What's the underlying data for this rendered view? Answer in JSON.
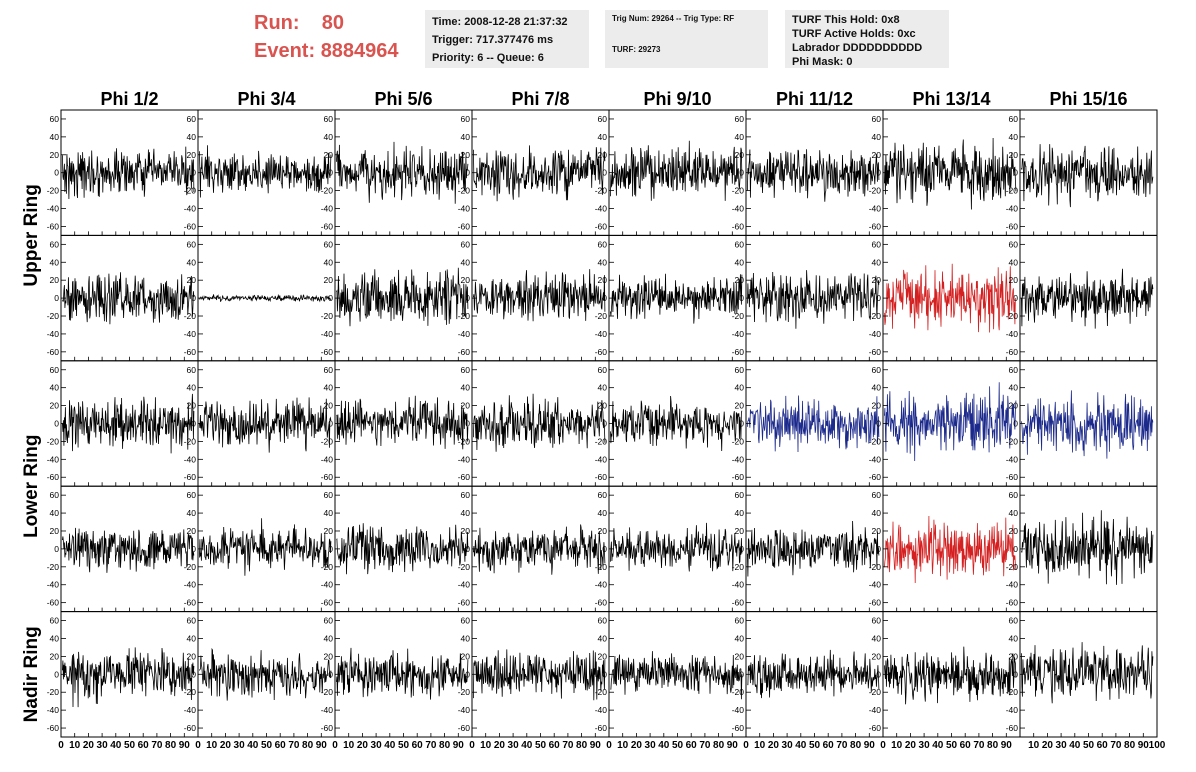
{
  "header": {
    "run_label": "Run:",
    "run_value": "80",
    "event_label": "Event:",
    "event_value": "8884964"
  },
  "info_boxes": {
    "time": {
      "time": "Time: 2008-12-28 21:37:32",
      "trigger": "Trigger: 717.377476 ms",
      "priority": "Priority: 6 -- Queue: 6"
    },
    "trig": {
      "trig_line": "Trig Num: 29264 -- Trig Type: RF",
      "turf_line": "TURF: 29273"
    },
    "turf": {
      "hold": "TURF This Hold: 0x8",
      "active": "TURF Active Holds: 0xc",
      "labrador": "Labrador DDDDDDDDDD",
      "phi_mask": "Phi Mask: 0"
    }
  },
  "colors": {
    "default": "#000000",
    "red": "#d42020",
    "blue": "#1c2a8c"
  },
  "chart_data": {
    "type": "line",
    "columns": [
      "Phi 1/2",
      "Phi 3/4",
      "Phi 5/6",
      "Phi 7/8",
      "Phi 9/10",
      "Phi 11/12",
      "Phi 13/14",
      "Phi 15/16"
    ],
    "row_labels": [
      "Upper Ring",
      "Lower Ring",
      "Nadir Ring"
    ],
    "xlim": [
      0,
      100
    ],
    "ylim": [
      -70,
      70
    ],
    "y_ticks": [
      -60,
      -40,
      -20,
      0,
      20,
      40,
      60
    ],
    "x_ticks_per_panel": [
      0,
      10,
      20,
      30,
      40,
      50,
      60,
      70,
      80,
      90
    ],
    "x_ticks_last": [
      10,
      20,
      30,
      40,
      50,
      60,
      70,
      80,
      90,
      100
    ],
    "x_tick_first_label": "0",
    "grid": false,
    "panel_styles": [
      [
        "black",
        "black",
        "black",
        "black",
        "black",
        "black",
        "black",
        "black"
      ],
      [
        "black",
        "black",
        "black",
        "black",
        "black",
        "black",
        "red",
        "black"
      ],
      [
        "black",
        "black",
        "black",
        "black",
        "black",
        "blue",
        "blue",
        "blue"
      ],
      [
        "black",
        "black",
        "black",
        "black",
        "black",
        "black",
        "red",
        "black"
      ],
      [
        "black",
        "black",
        "black",
        "black",
        "black",
        "black",
        "black",
        "black"
      ]
    ],
    "panel_amplitudes": [
      [
        15,
        14,
        17,
        17,
        17,
        15,
        19,
        18
      ],
      [
        16,
        2,
        18,
        16,
        15,
        16,
        20,
        17
      ],
      [
        16,
        16,
        16,
        16,
        15,
        17,
        20,
        19
      ],
      [
        14,
        15,
        15,
        15,
        14,
        15,
        18,
        20
      ],
      [
        16,
        14,
        14,
        14,
        13,
        14,
        16,
        17
      ]
    ]
  }
}
